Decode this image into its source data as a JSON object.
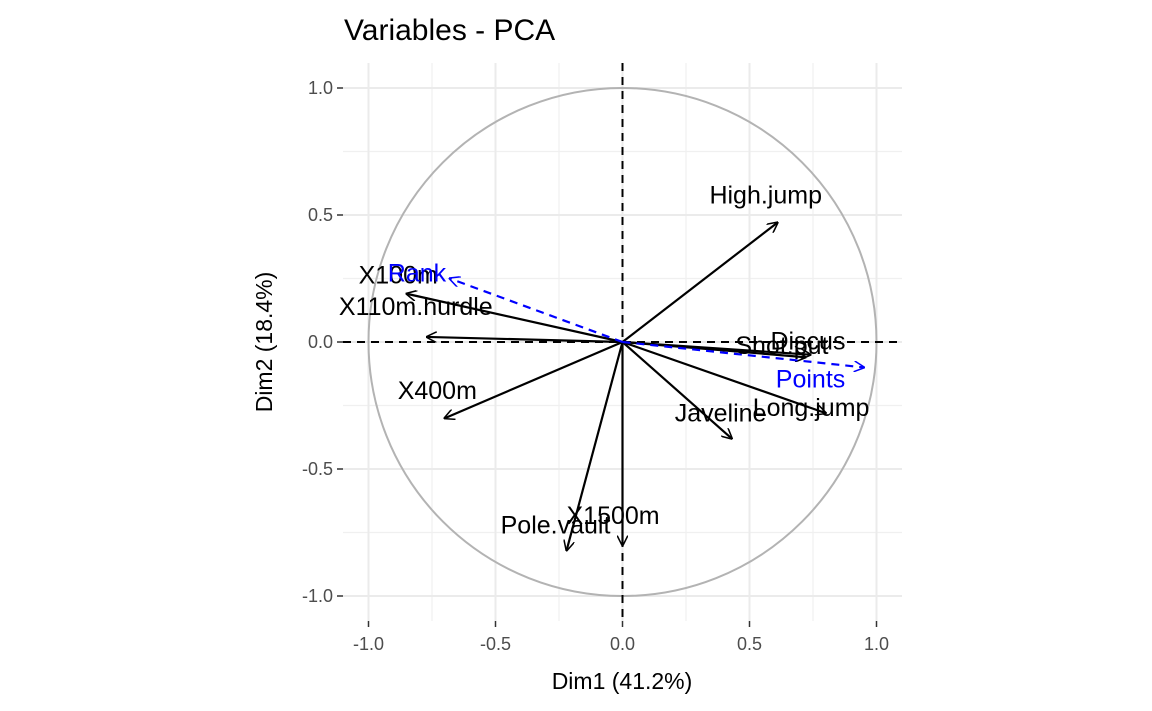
{
  "chart_data": {
    "type": "scatter",
    "subtype": "pca-variable-correlation-circle",
    "title": "Variables - PCA",
    "xlabel": "Dim1 (41.2%)",
    "ylabel": "Dim2 (18.4%)",
    "xlim": [
      -1.1,
      1.1
    ],
    "ylim": [
      -1.1,
      1.1
    ],
    "x_ticks": [
      "-1.0",
      "-0.5",
      "0.0",
      "0.5",
      "1.0"
    ],
    "y_ticks": [
      "1.0",
      "0.5",
      "0.0",
      "-0.5",
      "-1.0"
    ],
    "grid": true,
    "unit_circle": true,
    "reference_lines": {
      "x": 0,
      "y": 0,
      "style": "dashed"
    },
    "variables": [
      {
        "label": "X100m",
        "x": -0.85,
        "y": 0.19,
        "color": "#000000",
        "style": "solid"
      },
      {
        "label": "Long.jump",
        "x": 0.8,
        "y": -0.28,
        "color": "#000000",
        "style": "solid"
      },
      {
        "label": "Shot.put",
        "x": 0.72,
        "y": -0.06,
        "color": "#000000",
        "style": "solid"
      },
      {
        "label": "High.jump",
        "x": 0.61,
        "y": 0.47,
        "color": "#000000",
        "style": "solid"
      },
      {
        "label": "X400m",
        "x": -0.7,
        "y": -0.3,
        "color": "#000000",
        "style": "solid"
      },
      {
        "label": "X110m.hurdle",
        "x": -0.77,
        "y": 0.02,
        "color": "#000000",
        "style": "solid"
      },
      {
        "label": "Discus",
        "x": 0.74,
        "y": -0.05,
        "color": "#000000",
        "style": "solid"
      },
      {
        "label": "Pole.vault",
        "x": -0.22,
        "y": -0.82,
        "color": "#000000",
        "style": "solid"
      },
      {
        "label": "Javeline",
        "x": 0.43,
        "y": -0.38,
        "color": "#000000",
        "style": "solid"
      },
      {
        "label": "X1500m",
        "x": 0.0,
        "y": -0.8,
        "color": "#000000",
        "style": "solid"
      },
      {
        "label": "Rank",
        "x": -0.68,
        "y": 0.25,
        "color": "#0000ff",
        "style": "dashed"
      },
      {
        "label": "Points",
        "x": 0.95,
        "y": -0.1,
        "color": "#0000ff",
        "style": "dashed"
      }
    ]
  }
}
